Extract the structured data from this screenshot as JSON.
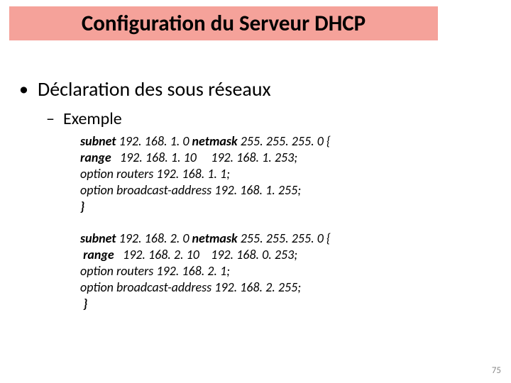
{
  "title": {
    "text": "Configuration du Serveur DHCP",
    "background": "#f5a29a",
    "fontsize": 31,
    "fontweight": 700,
    "color": "#000000"
  },
  "bullet1": {
    "marker": "•",
    "text": "Déclaration des sous réseaux",
    "fontsize": 28
  },
  "bullet2": {
    "marker": "–",
    "text": "Exemple",
    "fontsize": 24
  },
  "code1": {
    "l1a": "subnet",
    "l1b": " 192. 168. 1. 0 ",
    "l1c": "netmask",
    "l1d": " 255. 255. 255. 0 {",
    "l2a": "range",
    "l2b": "   192. 168. 1. 10     192. 168. 1. 253;",
    "l3": "option routers 192. 168. 1. 1;",
    "l4": "option broadcast-address 192. 168. 1. 255;",
    "l5": "}"
  },
  "code2": {
    "l1a": "subnet",
    "l1b": " 192. 168. 2. 0 ",
    "l1c": "netmask",
    "l1d": " 255. 255. 255. 0 {",
    "l2a": " range",
    "l2b": "   192. 168. 2. 10    192. 168. 0. 253;",
    "l3": "option routers 192. 168. 2. 1;",
    "l4": "option broadcast-address 192. 168. 2. 255;",
    "l5": " }"
  },
  "pagenum": "75",
  "colors": {
    "page_bg": "#ffffff",
    "pagenum_color": "#8a8a8a"
  }
}
